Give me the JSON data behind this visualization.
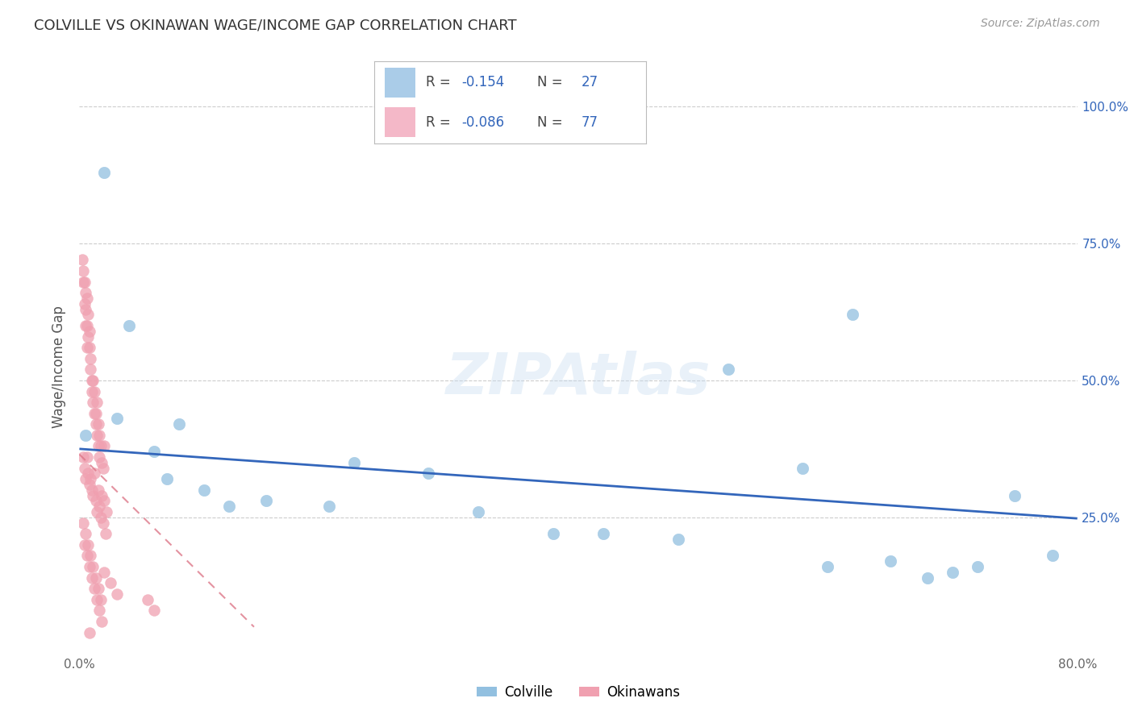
{
  "title": "COLVILLE VS OKINAWAN WAGE/INCOME GAP CORRELATION CHART",
  "source": "Source: ZipAtlas.com",
  "ylabel": "Wage/Income Gap",
  "ytick_labels": [
    "",
    "25.0%",
    "50.0%",
    "75.0%",
    "100.0%"
  ],
  "title_color": "#333333",
  "source_color": "#999999",
  "blue_color": "#92c0e0",
  "pink_color": "#f0a0b0",
  "blue_line_color": "#3366bb",
  "pink_line_color": "#dd7788",
  "legend_blue_color": "#aacce8",
  "legend_pink_color": "#f4b8c8",
  "text_blue_color": "#3366bb",
  "background_color": "#ffffff",
  "grid_color": "#cccccc",
  "xlim": [
    0.0,
    0.8
  ],
  "ylim": [
    0.0,
    1.05
  ],
  "colville_x": [
    0.02,
    0.04,
    0.03,
    0.005,
    0.06,
    0.08,
    0.1,
    0.15,
    0.22,
    0.28,
    0.32,
    0.38,
    0.42,
    0.48,
    0.52,
    0.58,
    0.6,
    0.62,
    0.68,
    0.72,
    0.75,
    0.78,
    0.07,
    0.12,
    0.2,
    0.65,
    0.7
  ],
  "colville_y": [
    0.88,
    0.6,
    0.43,
    0.4,
    0.37,
    0.42,
    0.3,
    0.28,
    0.35,
    0.33,
    0.26,
    0.22,
    0.22,
    0.21,
    0.52,
    0.34,
    0.16,
    0.62,
    0.14,
    0.16,
    0.29,
    0.18,
    0.32,
    0.27,
    0.27,
    0.17,
    0.15
  ],
  "okinawan_x": [
    0.003,
    0.004,
    0.005,
    0.005,
    0.006,
    0.006,
    0.007,
    0.007,
    0.008,
    0.008,
    0.009,
    0.009,
    0.01,
    0.01,
    0.011,
    0.011,
    0.012,
    0.012,
    0.013,
    0.013,
    0.014,
    0.014,
    0.015,
    0.015,
    0.016,
    0.016,
    0.017,
    0.018,
    0.019,
    0.02,
    0.003,
    0.004,
    0.005,
    0.006,
    0.007,
    0.008,
    0.009,
    0.01,
    0.011,
    0.012,
    0.013,
    0.014,
    0.015,
    0.016,
    0.017,
    0.018,
    0.019,
    0.02,
    0.021,
    0.022,
    0.003,
    0.004,
    0.005,
    0.006,
    0.007,
    0.008,
    0.009,
    0.01,
    0.011,
    0.012,
    0.013,
    0.014,
    0.015,
    0.016,
    0.017,
    0.018,
    0.002,
    0.003,
    0.004,
    0.005,
    0.006,
    0.02,
    0.025,
    0.03,
    0.055,
    0.06,
    0.008
  ],
  "okinawan_y": [
    0.7,
    0.68,
    0.66,
    0.63,
    0.65,
    0.6,
    0.62,
    0.58,
    0.59,
    0.56,
    0.54,
    0.52,
    0.5,
    0.48,
    0.5,
    0.46,
    0.44,
    0.48,
    0.42,
    0.44,
    0.46,
    0.4,
    0.38,
    0.42,
    0.36,
    0.4,
    0.38,
    0.35,
    0.34,
    0.38,
    0.36,
    0.34,
    0.32,
    0.36,
    0.33,
    0.31,
    0.32,
    0.3,
    0.29,
    0.33,
    0.28,
    0.26,
    0.3,
    0.27,
    0.25,
    0.29,
    0.24,
    0.28,
    0.22,
    0.26,
    0.24,
    0.2,
    0.22,
    0.18,
    0.2,
    0.16,
    0.18,
    0.14,
    0.16,
    0.12,
    0.14,
    0.1,
    0.12,
    0.08,
    0.1,
    0.06,
    0.72,
    0.68,
    0.64,
    0.6,
    0.56,
    0.15,
    0.13,
    0.11,
    0.1,
    0.08,
    0.04
  ],
  "blue_line_x0": 0.0,
  "blue_line_x1": 0.8,
  "blue_line_y0": 0.375,
  "blue_line_y1": 0.248,
  "pink_line_x0": 0.0,
  "pink_line_x1": 0.14,
  "pink_line_y0": 0.365,
  "pink_line_y1": 0.05,
  "watermark_text": "ZIPAtlas",
  "watermark_color": "#c8ddf0",
  "watermark_alpha": 0.4
}
